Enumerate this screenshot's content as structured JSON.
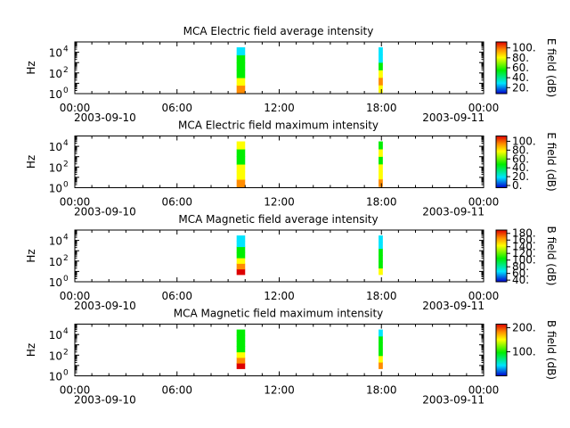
{
  "colors": {
    "low": "#0000cc",
    "cyan": "#00e5ff",
    "green": "#00ee00",
    "yellow": "#ffff00",
    "orange": "#ff8c00",
    "high": "#dd0000"
  },
  "chart_data": [
    {
      "type": "heatmap",
      "title": "MCA  Electric field average intensity",
      "ylabel": "Hz",
      "colorbar_label": "E field (dB)",
      "colorbar_ticks": [
        "20.",
        "40.",
        "60.",
        "80.",
        "100."
      ],
      "colorbar_range": [
        8,
        112
      ],
      "yticks": [
        {
          "base": "10",
          "exp": "0"
        },
        {
          "base": "10",
          "exp": "2"
        },
        {
          "base": "10",
          "exp": "4"
        }
      ],
      "ylim": [
        1,
        100000
      ],
      "ylog": true,
      "xlim": [
        "2003-09-10T00:00",
        "2003-09-11T00:00"
      ],
      "xticks": [
        "00:00",
        "06:00",
        "12:00",
        "18:00",
        "00:00"
      ],
      "xdates": [
        "2003-09-10",
        "2003-09-11"
      ],
      "blocks": [
        {
          "start": "2003-09-10T09:30",
          "end": "2003-09-10T10:00",
          "freq_min": 1.2,
          "freq_max": 30000,
          "colors": [
            "orange",
            "yellow",
            "green",
            "green",
            "green",
            "cyan"
          ]
        },
        {
          "start": "2003-09-10T17:50",
          "end": "2003-09-10T18:05",
          "freq_min": 1.3,
          "freq_max": 30000,
          "colors": [
            "yellow",
            "orange",
            "yellow",
            "green",
            "cyan",
            "cyan"
          ]
        }
      ]
    },
    {
      "type": "heatmap",
      "title": "MCA  Electric field maximum intensity",
      "ylabel": "Hz",
      "colorbar_label": "E field (dB)",
      "colorbar_ticks": [
        "0.",
        "20.",
        "40.",
        "60.",
        "80.",
        "100."
      ],
      "colorbar_range": [
        -5,
        112
      ],
      "yticks": [
        {
          "base": "10",
          "exp": "0"
        },
        {
          "base": "10",
          "exp": "2"
        },
        {
          "base": "10",
          "exp": "4"
        }
      ],
      "ylim": [
        1,
        100000
      ],
      "ylog": true,
      "xlim": [
        "2003-09-10T00:00",
        "2003-09-11T00:00"
      ],
      "xticks": [
        "00:00",
        "06:00",
        "12:00",
        "18:00",
        "00:00"
      ],
      "xdates": [
        "2003-09-10",
        "2003-09-11"
      ],
      "blocks": [
        {
          "start": "2003-09-10T09:30",
          "end": "2003-09-10T10:00",
          "freq_min": 1.2,
          "freq_max": 30000,
          "colors": [
            "orange",
            "yellow",
            "yellow",
            "green",
            "green",
            "yellow"
          ]
        },
        {
          "start": "2003-09-10T17:50",
          "end": "2003-09-10T18:05",
          "freq_min": 1.3,
          "freq_max": 30000,
          "colors": [
            "orange",
            "yellow",
            "yellow",
            "green",
            "yellow",
            "green"
          ]
        }
      ]
    },
    {
      "type": "heatmap",
      "title": "MCA  Magnetic field average intensity",
      "ylabel": "Hz",
      "colorbar_label": "B field (dB)",
      "colorbar_ticks": [
        "40.",
        "60.",
        "80.",
        "100.",
        "120.",
        "140.",
        "160.",
        "180."
      ],
      "colorbar_range": [
        35,
        190
      ],
      "yticks": [
        {
          "base": "10",
          "exp": "0"
        },
        {
          "base": "10",
          "exp": "2"
        },
        {
          "base": "10",
          "exp": "4"
        }
      ],
      "ylim": [
        1,
        100000
      ],
      "ylog": true,
      "xlim": [
        "2003-09-10T00:00",
        "2003-09-11T00:00"
      ],
      "xticks": [
        "00:00",
        "06:00",
        "12:00",
        "18:00",
        "00:00"
      ],
      "xdates": [
        "2003-09-10",
        "2003-09-11"
      ],
      "blocks": [
        {
          "start": "2003-09-10T09:30",
          "end": "2003-09-10T10:00",
          "freq_min": 5,
          "freq_max": 30000,
          "colors": [
            "high",
            "orange",
            "yellow",
            "green",
            "green",
            "cyan",
            "cyan"
          ]
        },
        {
          "start": "2003-09-10T17:50",
          "end": "2003-09-10T18:05",
          "freq_min": 5,
          "freq_max": 30000,
          "colors": [
            "yellow",
            "green",
            "green",
            "green",
            "cyan",
            "cyan"
          ]
        }
      ]
    },
    {
      "type": "heatmap",
      "title": "MCA  Magnetic field maximum intensity",
      "ylabel": "Hz",
      "colorbar_label": "B field (dB)",
      "colorbar_ticks": [
        "100.",
        "200."
      ],
      "colorbar_range": [
        0,
        215
      ],
      "yticks": [
        {
          "base": "10",
          "exp": "0"
        },
        {
          "base": "10",
          "exp": "2"
        },
        {
          "base": "10",
          "exp": "4"
        }
      ],
      "ylim": [
        1,
        100000
      ],
      "ylog": true,
      "xlim": [
        "2003-09-10T00:00",
        "2003-09-11T00:00"
      ],
      "xticks": [
        "00:00",
        "06:00",
        "12:00",
        "18:00",
        "00:00"
      ],
      "xdates": [
        "2003-09-10",
        "2003-09-11"
      ],
      "blocks": [
        {
          "start": "2003-09-10T09:30",
          "end": "2003-09-10T10:00",
          "freq_min": 5,
          "freq_max": 30000,
          "colors": [
            "high",
            "orange",
            "yellow",
            "green",
            "green",
            "green",
            "green"
          ]
        },
        {
          "start": "2003-09-10T17:50",
          "end": "2003-09-10T18:05",
          "freq_min": 5,
          "freq_max": 30000,
          "colors": [
            "orange",
            "yellow",
            "green",
            "green",
            "green",
            "cyan"
          ]
        }
      ]
    }
  ]
}
